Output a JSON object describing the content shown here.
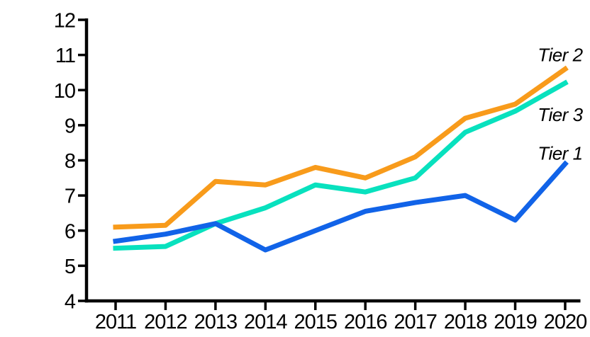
{
  "chart_data": {
    "type": "line",
    "title": "",
    "xlabel": "",
    "ylabel": "",
    "background": "#ffffff",
    "axis_color": "#000000",
    "grid": false,
    "legend_position": "inline-end-of-line-labels",
    "x": [
      2011,
      2012,
      2013,
      2014,
      2015,
      2016,
      2017,
      2018,
      2019,
      2020
    ],
    "x_tick_labels": [
      "2011",
      "2012",
      "2013",
      "2014",
      "2015",
      "2016",
      "2017",
      "2018",
      "2019",
      "2020"
    ],
    "y_ticks": [
      4,
      5,
      6,
      7,
      8,
      9,
      10,
      11,
      12
    ],
    "y_tick_labels": [
      "4",
      "5",
      "6",
      "7",
      "8",
      "9",
      "10",
      "11",
      "12"
    ],
    "ylim": [
      4,
      12
    ],
    "series": [
      {
        "name": "Tier 2",
        "color": "#F89B1B",
        "values": [
          6.1,
          6.15,
          7.4,
          7.3,
          7.8,
          7.5,
          8.1,
          9.2,
          9.6,
          10.6
        ]
      },
      {
        "name": "Tier 3",
        "color": "#08E1BE",
        "values": [
          5.5,
          5.55,
          6.2,
          6.65,
          7.3,
          7.1,
          7.5,
          8.8,
          9.4,
          10.2
        ]
      },
      {
        "name": "Tier 1",
        "color": "#1163E8",
        "values": [
          5.7,
          5.9,
          6.2,
          5.45,
          6.0,
          6.55,
          6.8,
          7.0,
          6.3,
          7.9
        ]
      }
    ],
    "annotations": [
      {
        "text": "Tier 2",
        "x": 2019.9,
        "y": 11.0
      },
      {
        "text": "Tier 3",
        "x": 2019.9,
        "y": 9.3
      },
      {
        "text": "Tier 1",
        "x": 2019.9,
        "y": 8.2
      }
    ]
  }
}
